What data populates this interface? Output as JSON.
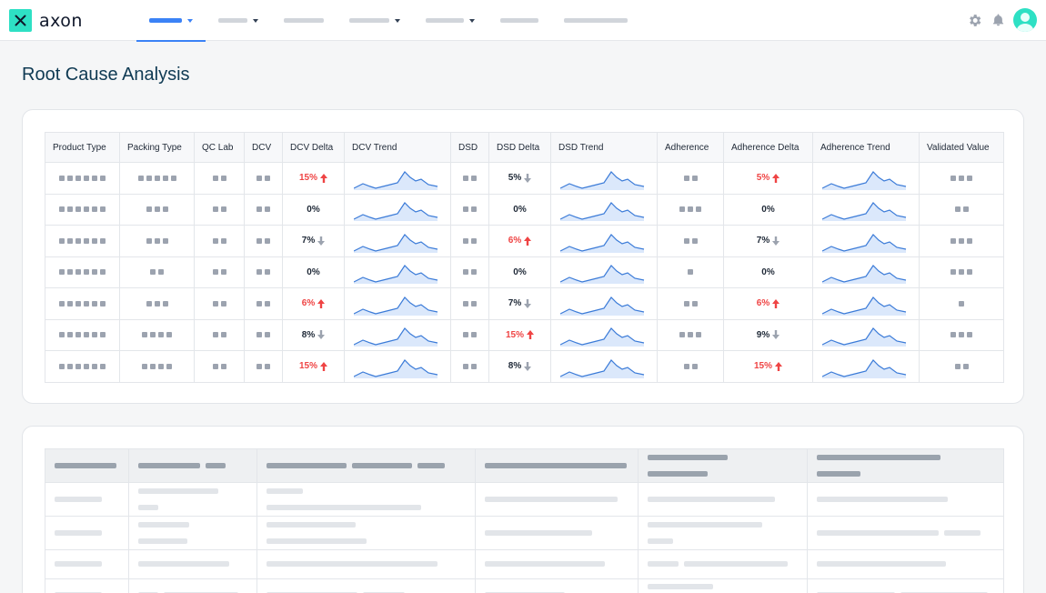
{
  "app": {
    "logo_text": "axon"
  },
  "nav": {
    "items": [
      {
        "w": 36,
        "caret": true,
        "active": true
      },
      {
        "w": 32,
        "caret": true,
        "active": false
      },
      {
        "w": 44,
        "caret": false,
        "active": false
      },
      {
        "w": 44,
        "caret": true,
        "active": false
      },
      {
        "w": 42,
        "caret": true,
        "active": false
      },
      {
        "w": 42,
        "caret": false,
        "active": false
      },
      {
        "w": 70,
        "caret": false,
        "active": false
      }
    ]
  },
  "icons": {
    "settings": "gear-icon",
    "notifications": "bell-icon",
    "avatar": "user-avatar-icon"
  },
  "page": {
    "title": "Root Cause Analysis"
  },
  "colors": {
    "accent": "#3b82f6",
    "brand": "#2ee0c4",
    "up": "#ef4444",
    "spark_line": "#3b7bd8",
    "spark_fill": "#dbe8fb"
  },
  "rca_table": {
    "headers": [
      "Product Type",
      "Packing Type",
      "QC Lab",
      "DCV",
      "DCV Delta",
      "DCV Trend",
      "DSD",
      "DSD Delta",
      "DSD Trend",
      "Adherence",
      "Adherence Delta",
      "Adherence Trend",
      "Validated Value"
    ],
    "rows": [
      {
        "product": 6,
        "packing": 5,
        "qclab": 2,
        "dcv": 2,
        "dcv_delta": {
          "text": "15%",
          "dir": "up"
        },
        "dsd": 2,
        "dsd_delta": {
          "text": "5%",
          "dir": "down"
        },
        "adh": 2,
        "adh_delta": {
          "text": "5%",
          "dir": "up"
        },
        "validated": 3
      },
      {
        "product": 6,
        "packing": 3,
        "qclab": 2,
        "dcv": 2,
        "dcv_delta": {
          "text": "0%",
          "dir": "none"
        },
        "dsd": 2,
        "dsd_delta": {
          "text": "0%",
          "dir": "none"
        },
        "adh": 3,
        "adh_delta": {
          "text": "0%",
          "dir": "none"
        },
        "validated": 2
      },
      {
        "product": 6,
        "packing": 3,
        "qclab": 2,
        "dcv": 2,
        "dcv_delta": {
          "text": "7%",
          "dir": "down"
        },
        "dsd": 2,
        "dsd_delta": {
          "text": "6%",
          "dir": "up"
        },
        "adh": 2,
        "adh_delta": {
          "text": "7%",
          "dir": "down"
        },
        "validated": 3
      },
      {
        "product": 6,
        "packing": 2,
        "qclab": 2,
        "dcv": 2,
        "dcv_delta": {
          "text": "0%",
          "dir": "none"
        },
        "dsd": 2,
        "dsd_delta": {
          "text": "0%",
          "dir": "none"
        },
        "adh": 1,
        "adh_delta": {
          "text": "0%",
          "dir": "none"
        },
        "validated": 3
      },
      {
        "product": 6,
        "packing": 3,
        "qclab": 2,
        "dcv": 2,
        "dcv_delta": {
          "text": "6%",
          "dir": "up"
        },
        "dsd": 2,
        "dsd_delta": {
          "text": "7%",
          "dir": "down"
        },
        "adh": 2,
        "adh_delta": {
          "text": "6%",
          "dir": "up"
        },
        "validated": 1
      },
      {
        "product": 6,
        "packing": 4,
        "qclab": 2,
        "dcv": 2,
        "dcv_delta": {
          "text": "8%",
          "dir": "down"
        },
        "dsd": 2,
        "dsd_delta": {
          "text": "15%",
          "dir": "up"
        },
        "adh": 3,
        "adh_delta": {
          "text": "9%",
          "dir": "down"
        },
        "validated": 3
      },
      {
        "product": 6,
        "packing": 4,
        "qclab": 2,
        "dcv": 2,
        "dcv_delta": {
          "text": "15%",
          "dir": "up"
        },
        "dsd": 2,
        "dsd_delta": {
          "text": "8%",
          "dir": "down"
        },
        "adh": 2,
        "adh_delta": {
          "text": "15%",
          "dir": "up"
        },
        "validated": 2
      }
    ]
  },
  "skeleton_table": {
    "header": [
      [
        68
      ],
      [
        68,
        22
      ],
      [
        88,
        66,
        30
      ],
      [
        156
      ],
      [
        88,
        66
      ],
      [
        136,
        48
      ]
    ],
    "rows": [
      [
        [
          52
        ],
        [
          88,
          22
        ],
        [
          40,
          170
        ],
        [
          146
        ],
        [
          140
        ],
        [
          144
        ]
      ],
      [
        [
          52
        ],
        [
          56,
          54
        ],
        [
          98,
          110
        ],
        [
          118
        ],
        [
          126,
          28
        ],
        [
          134,
          40
        ]
      ],
      [
        [
          52
        ],
        [
          100
        ],
        [
          188
        ],
        [
          132
        ],
        [
          34,
          114
        ],
        [
          142
        ]
      ],
      [
        [
          52
        ],
        [
          22,
          82
        ],
        [
          100,
          46
        ],
        [
          88
        ],
        [
          72,
          82
        ],
        [
          86,
          96
        ]
      ]
    ]
  }
}
